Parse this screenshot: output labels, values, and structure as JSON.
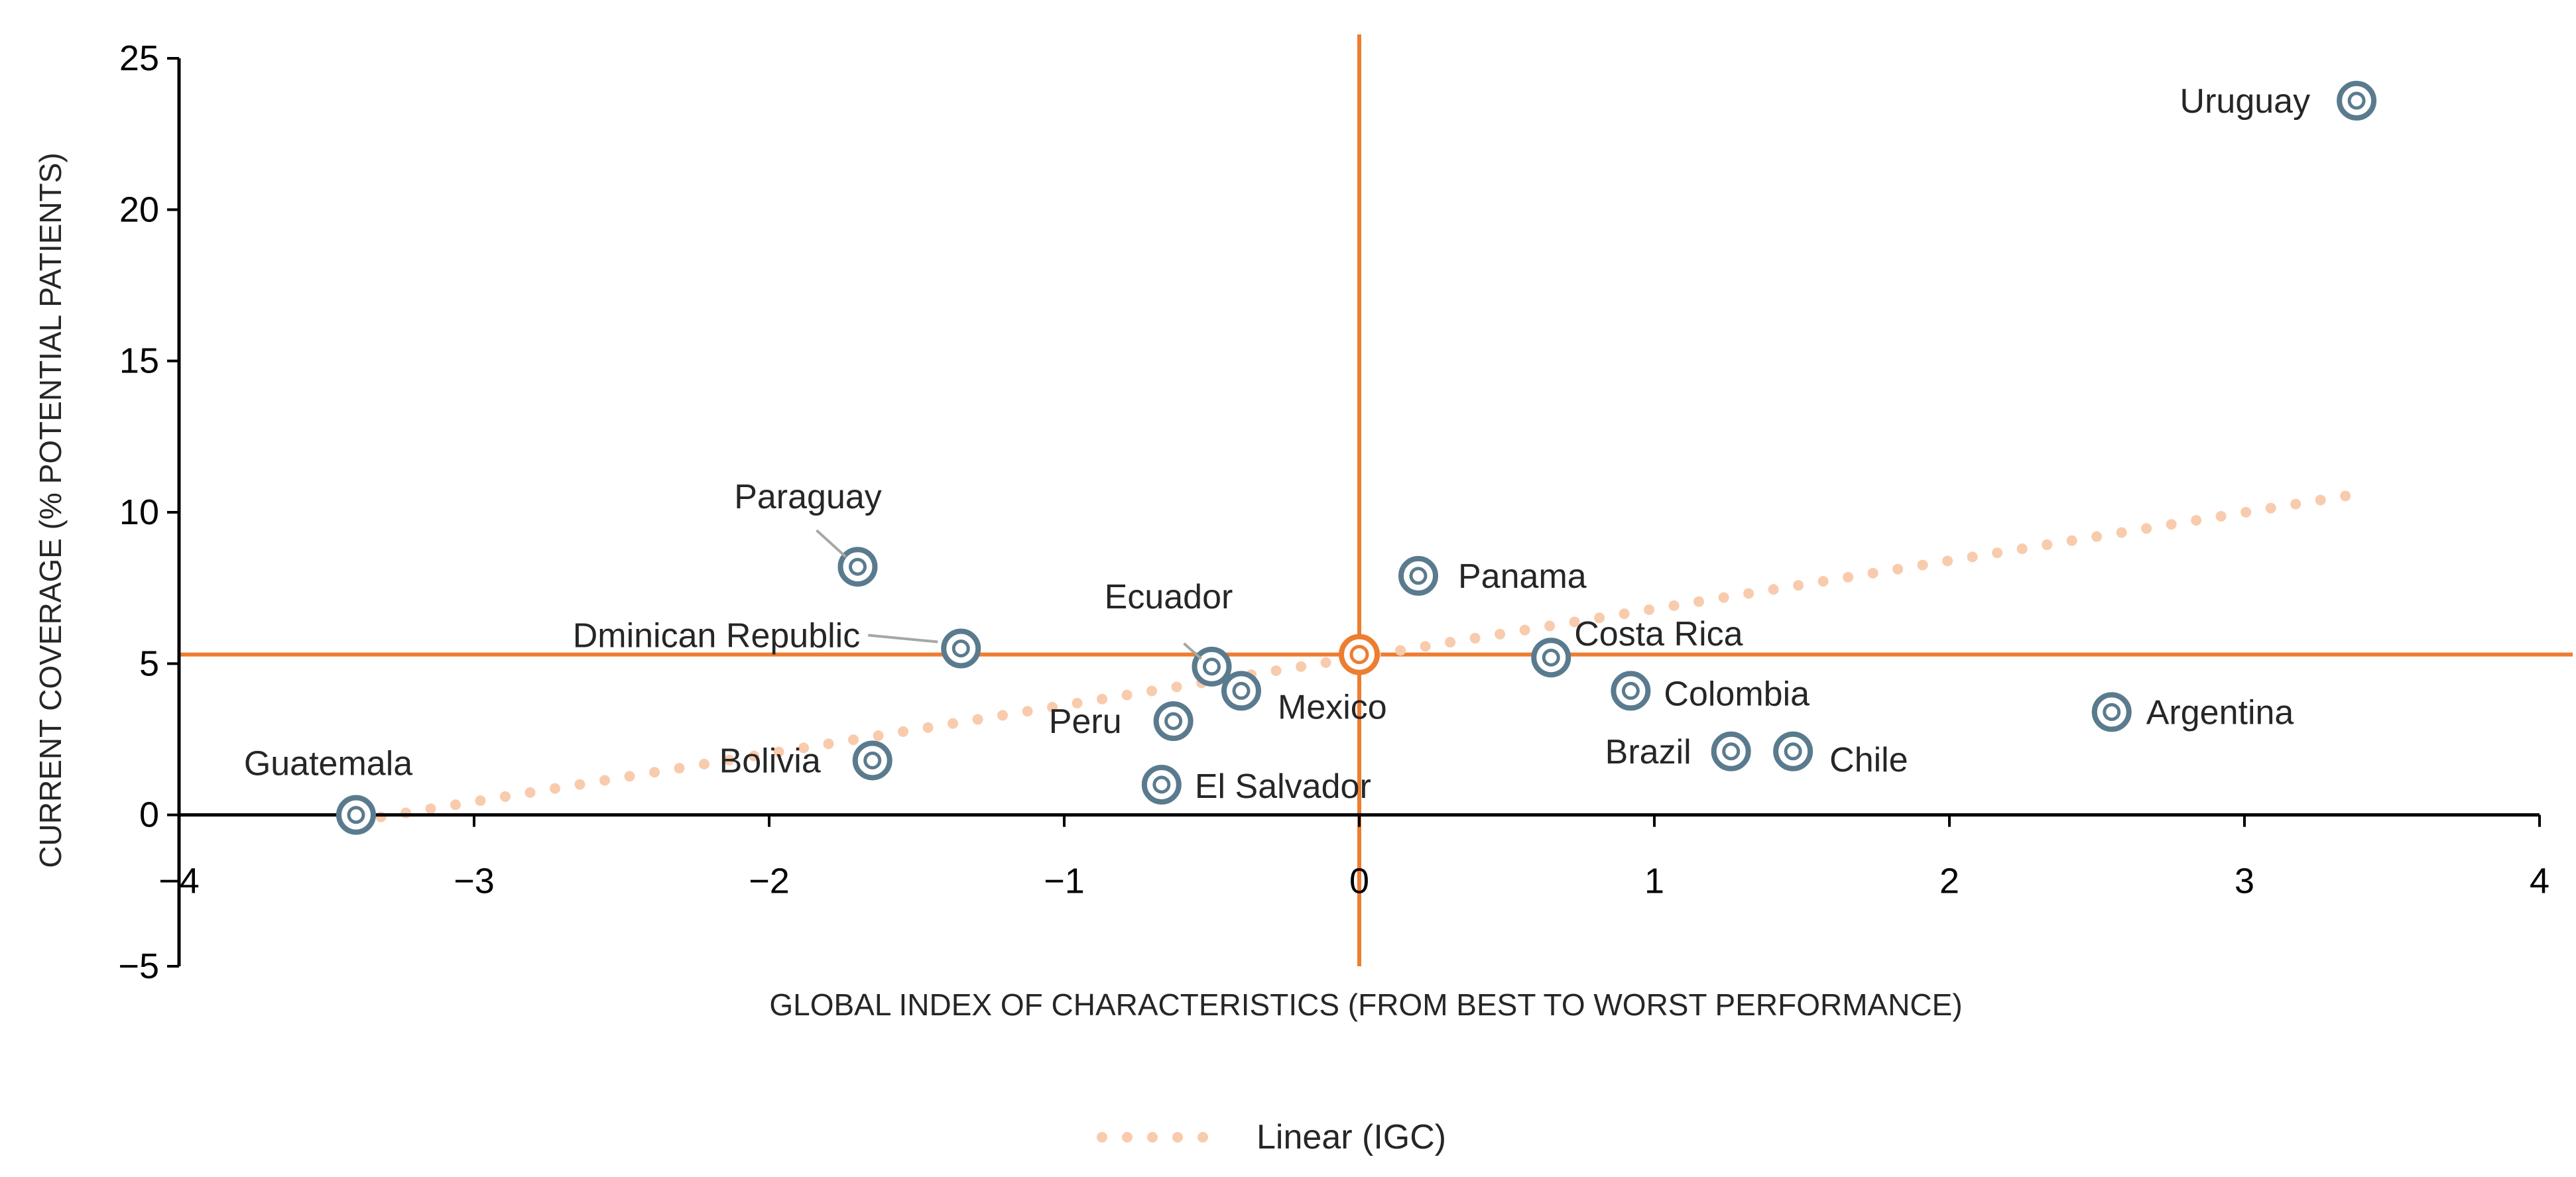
{
  "chart_data": {
    "type": "scatter",
    "title": "",
    "xlabel": "GLOBAL INDEX OF CHARACTERISTICS (FROM BEST TO WORST PERFORMANCE)",
    "ylabel": "CURRENT COVERAGE (% POTENTIAL PATIENTS)",
    "xlim": [
      -4,
      4
    ],
    "ylim": [
      -5,
      25
    ],
    "xticks": [
      -4,
      -3,
      -2,
      -1,
      0,
      1,
      2,
      3,
      4
    ],
    "yticks": [
      -5,
      0,
      5,
      10,
      15,
      20,
      25
    ],
    "xtick_labels": [
      "−4",
      "−3",
      "−2",
      "−1",
      "0",
      "1",
      "2",
      "3",
      "4"
    ],
    "ytick_labels": [
      "−5",
      "0",
      "5",
      "10",
      "15",
      "20",
      "25"
    ],
    "grid": false,
    "marker_color": "#5A7B8E",
    "highlight_color": "#ED7D31",
    "trend_color": "#F8CBAD",
    "reference_lines": {
      "x": 0,
      "y": 5.3,
      "color": "#ED7D31"
    },
    "points": [
      {
        "label": "Uruguay",
        "x": 3.38,
        "y": 23.6
      },
      {
        "label": "Paraguay",
        "x": -1.7,
        "y": 8.2
      },
      {
        "label": "Panama",
        "x": 0.2,
        "y": 7.9
      },
      {
        "label": "Dminican Republic",
        "x": -1.35,
        "y": 5.5
      },
      {
        "label": "Ecuador",
        "x": -0.5,
        "y": 4.9
      },
      {
        "label": "Costa Rica",
        "x": 0.65,
        "y": 5.2
      },
      {
        "label": "Mexico",
        "x": -0.4,
        "y": 4.1
      },
      {
        "label": "Colombia",
        "x": 0.92,
        "y": 4.1
      },
      {
        "label": "Peru",
        "x": -0.63,
        "y": 3.1
      },
      {
        "label": "Argentina",
        "x": 2.55,
        "y": 3.4
      },
      {
        "label": "Bolivia",
        "x": -1.65,
        "y": 1.8
      },
      {
        "label": "Brazil",
        "x": 1.26,
        "y": 2.1
      },
      {
        "label": "Chile",
        "x": 1.47,
        "y": 2.1
      },
      {
        "label": "El Salvador",
        "x": -0.67,
        "y": 1.0
      },
      {
        "label": "Guatemala",
        "x": -3.4,
        "y": 0.0
      }
    ],
    "highlight_point": {
      "x": 0.0,
      "y": 5.3
    },
    "trendline": {
      "name": "Linear (IGC)",
      "x_start": -3.4,
      "y_start": -0.2,
      "x_end": 3.38,
      "y_end": 10.6
    },
    "legend": {
      "position": "bottom",
      "entries": [
        "Linear (IGC)"
      ]
    }
  }
}
